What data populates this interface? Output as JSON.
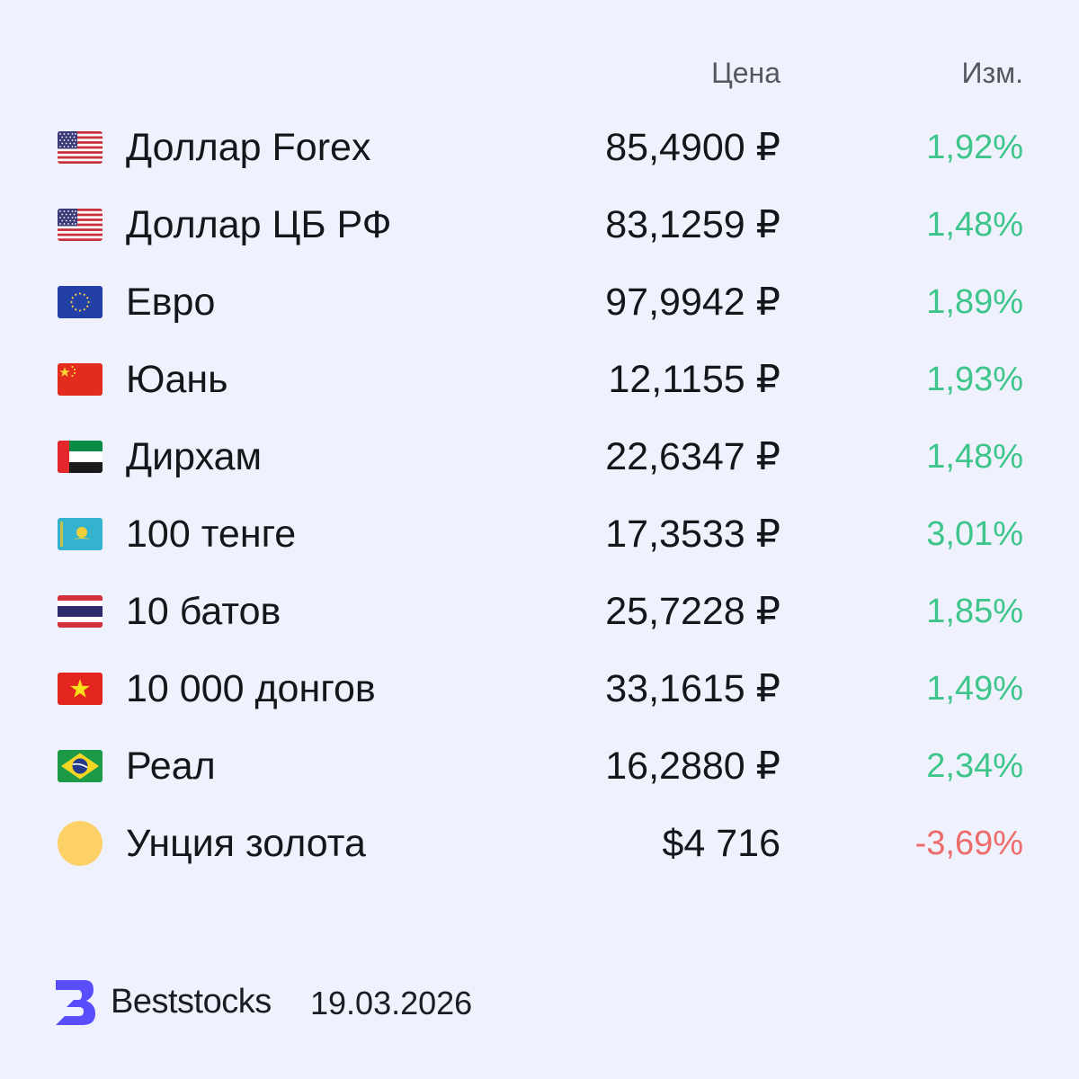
{
  "header": {
    "price_label": "Цена",
    "change_label": "Изм."
  },
  "rows": [
    {
      "flag": "us-flag-icon",
      "name": "Доллар Forex",
      "price": "85,4900 ₽",
      "change": "1,92%",
      "direction": "up"
    },
    {
      "flag": "us-flag-icon",
      "name": "Доллар ЦБ РФ",
      "price": "83,1259 ₽",
      "change": "1,48%",
      "direction": "up"
    },
    {
      "flag": "eu-flag-icon",
      "name": "Евро",
      "price": "97,9942 ₽",
      "change": "1,89%",
      "direction": "up"
    },
    {
      "flag": "cn-flag-icon",
      "name": "Юань",
      "price": "12,1155 ₽",
      "change": "1,93%",
      "direction": "up"
    },
    {
      "flag": "ae-flag-icon",
      "name": "Дирхам",
      "price": "22,6347 ₽",
      "change": "1,48%",
      "direction": "up"
    },
    {
      "flag": "kz-flag-icon",
      "name": "100 тенге",
      "price": "17,3533 ₽",
      "change": "3,01%",
      "direction": "up"
    },
    {
      "flag": "th-flag-icon",
      "name": "10 батов",
      "price": "25,7228 ₽",
      "change": "1,85%",
      "direction": "up"
    },
    {
      "flag": "vn-flag-icon",
      "name": "10 000 донгов",
      "price": "33,1615 ₽",
      "change": "1,49%",
      "direction": "up"
    },
    {
      "flag": "br-flag-icon",
      "name": "Реал",
      "price": "16,2880 ₽",
      "change": "2,34%",
      "direction": "up"
    },
    {
      "flag": "gold-coin-icon",
      "name": "Унция золота",
      "price": "$4 716",
      "change": "-3,69%",
      "direction": "down"
    }
  ],
  "colors": {
    "background": "#eff2fc",
    "positive": "#3ec58b",
    "negative": "#ee6b6b",
    "brand": "#5a4dfb",
    "gold": "#fdd068"
  },
  "footer": {
    "logo_icon": "beststocks-logo-icon",
    "brand": "Beststocks",
    "date": "19.03.2026"
  }
}
